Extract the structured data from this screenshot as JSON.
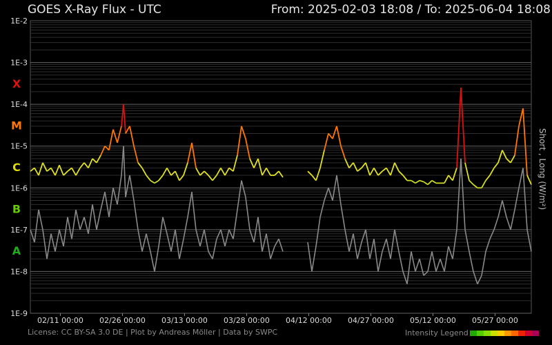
{
  "header": {
    "title": "GOES X-Ray Flux - UTC",
    "range": "From: 2025-02-03 18:08  /  To: 2025-06-04 18:08"
  },
  "side_label": "Short , Long (W/m²)",
  "footer": {
    "license": "License: CC BY-SA 3.0 DE | Plot by Andreas Möller | Data by SWPC",
    "legend_label": "Intensity Legend",
    "legend_colors": [
      "#22aa00",
      "#55cc00",
      "#88dd00",
      "#ccdd00",
      "#ffcc00",
      "#ff9900",
      "#ff6600",
      "#ee2200",
      "#cc0033",
      "#aa0055"
    ]
  },
  "chart_data": {
    "type": "line",
    "title": "GOES X-Ray Flux - UTC",
    "ylabel": "Short , Long (W/m²)",
    "y_scale": "log",
    "ylim": [
      1e-09,
      0.01
    ],
    "y_ticks": [
      "1E-9",
      "1E-8",
      "1E-7",
      "1E-6",
      "1E-5",
      "1E-4",
      "1E-3",
      "1E-2"
    ],
    "flare_classes": [
      {
        "label": "A",
        "color": "#22aa22",
        "value": 1e-07
      },
      {
        "label": "B",
        "color": "#66cc00",
        "value": 1e-06
      },
      {
        "label": "C",
        "color": "#dddd00",
        "value": 1e-05
      },
      {
        "label": "M",
        "color": "#ff7700",
        "value": 0.0001
      },
      {
        "label": "X",
        "color": "#dd1111",
        "value": 0.001
      }
    ],
    "x_ticks": [
      "02/11 00:00",
      "02/26 00:00",
      "03/13 00:00",
      "03/28 00:00",
      "04/12 00:00",
      "04/27 00:00",
      "05/12 00:00",
      "05/27 00:00"
    ],
    "x_start_day": 0,
    "x_tick_days": [
      7.24,
      22.24,
      37.24,
      52.24,
      67.24,
      82.24,
      97.24,
      112.24
    ],
    "x_end_day": 121,
    "grid": true,
    "series": [
      {
        "name": "Long",
        "points": [
          [
            0,
            2.5e-06
          ],
          [
            1,
            3e-06
          ],
          [
            2,
            2e-06
          ],
          [
            3,
            4e-06
          ],
          [
            4,
            2.5e-06
          ],
          [
            5,
            3e-06
          ],
          [
            6,
            2e-06
          ],
          [
            7,
            3.5e-06
          ],
          [
            8,
            2e-06
          ],
          [
            9,
            2.5e-06
          ],
          [
            10,
            3e-06
          ],
          [
            11,
            2e-06
          ],
          [
            12,
            3e-06
          ],
          [
            13,
            4e-06
          ],
          [
            14,
            3e-06
          ],
          [
            15,
            5e-06
          ],
          [
            16,
            4e-06
          ],
          [
            17,
            6e-06
          ],
          [
            18,
            1e-05
          ],
          [
            19,
            8e-06
          ],
          [
            20,
            2.5e-05
          ],
          [
            21,
            1.2e-05
          ],
          [
            22,
            3e-05
          ],
          [
            22.5,
            0.0001
          ],
          [
            23,
            2e-05
          ],
          [
            24,
            3e-05
          ],
          [
            25,
            1e-05
          ],
          [
            26,
            4e-06
          ],
          [
            27,
            3e-06
          ],
          [
            28,
            2e-06
          ],
          [
            29,
            1.5e-06
          ],
          [
            30,
            1.3e-06
          ],
          [
            31,
            1.5e-06
          ],
          [
            32,
            2e-06
          ],
          [
            33,
            3e-06
          ],
          [
            34,
            2e-06
          ],
          [
            35,
            2.5e-06
          ],
          [
            36,
            1.5e-06
          ],
          [
            37,
            2e-06
          ],
          [
            38,
            4e-06
          ],
          [
            39,
            1.2e-05
          ],
          [
            40,
            3e-06
          ],
          [
            41,
            2e-06
          ],
          [
            42,
            2.5e-06
          ],
          [
            43,
            2e-06
          ],
          [
            44,
            1.5e-06
          ],
          [
            45,
            2e-06
          ],
          [
            46,
            3e-06
          ],
          [
            47,
            2e-06
          ],
          [
            48,
            3e-06
          ],
          [
            49,
            2.5e-06
          ],
          [
            50,
            6e-06
          ],
          [
            51,
            3e-05
          ],
          [
            52,
            1.5e-05
          ],
          [
            53,
            5e-06
          ],
          [
            54,
            3e-06
          ],
          [
            55,
            5e-06
          ],
          [
            56,
            2e-06
          ],
          [
            57,
            3e-06
          ],
          [
            58,
            2e-06
          ],
          [
            59,
            2e-06
          ],
          [
            60,
            2.5e-06
          ],
          [
            61,
            1.8e-06
          ],
          [
            62,
            null
          ],
          [
            67,
            2.5e-06
          ],
          [
            68,
            2e-06
          ],
          [
            69,
            1.5e-06
          ],
          [
            70,
            3e-06
          ],
          [
            71,
            8e-06
          ],
          [
            72,
            2e-05
          ],
          [
            73,
            1.5e-05
          ],
          [
            74,
            3e-05
          ],
          [
            75,
            1e-05
          ],
          [
            76,
            5e-06
          ],
          [
            77,
            3e-06
          ],
          [
            78,
            4e-06
          ],
          [
            79,
            2.5e-06
          ],
          [
            80,
            3e-06
          ],
          [
            81,
            4e-06
          ],
          [
            82,
            2e-06
          ],
          [
            83,
            3e-06
          ],
          [
            84,
            2e-06
          ],
          [
            85,
            2.5e-06
          ],
          [
            86,
            3e-06
          ],
          [
            87,
            2e-06
          ],
          [
            88,
            4e-06
          ],
          [
            89,
            2.5e-06
          ],
          [
            90,
            2e-06
          ],
          [
            91,
            1.5e-06
          ],
          [
            92,
            1.5e-06
          ],
          [
            93,
            1.3e-06
          ],
          [
            94,
            1.5e-06
          ],
          [
            95,
            1.4e-06
          ],
          [
            96,
            1.2e-06
          ],
          [
            97,
            1.5e-06
          ],
          [
            98,
            1.3e-06
          ],
          [
            99,
            1.3e-06
          ],
          [
            100,
            1.3e-06
          ],
          [
            101,
            2e-06
          ],
          [
            102,
            1.5e-06
          ],
          [
            103,
            3e-06
          ],
          [
            104,
            0.00025
          ],
          [
            105,
            4e-06
          ],
          [
            106,
            1.5e-06
          ],
          [
            107,
            1.2e-06
          ],
          [
            108,
            1e-06
          ],
          [
            109,
            1e-06
          ],
          [
            110,
            1.5e-06
          ],
          [
            111,
            2e-06
          ],
          [
            112,
            3e-06
          ],
          [
            113,
            4e-06
          ],
          [
            114,
            8e-06
          ],
          [
            115,
            5e-06
          ],
          [
            116,
            4e-06
          ],
          [
            117,
            6e-06
          ],
          [
            118,
            3e-05
          ],
          [
            119,
            8e-05
          ],
          [
            120,
            2e-06
          ],
          [
            121,
            1.2e-06
          ]
        ]
      },
      {
        "name": "Short",
        "points": [
          [
            0,
            1e-07
          ],
          [
            1,
            5e-08
          ],
          [
            2,
            3e-07
          ],
          [
            3,
            1e-07
          ],
          [
            4,
            2e-08
          ],
          [
            5,
            8e-08
          ],
          [
            6,
            3e-08
          ],
          [
            7,
            1e-07
          ],
          [
            8,
            4e-08
          ],
          [
            9,
            2e-07
          ],
          [
            10,
            6e-08
          ],
          [
            11,
            3e-07
          ],
          [
            12,
            1e-07
          ],
          [
            13,
            2e-07
          ],
          [
            14,
            8e-08
          ],
          [
            15,
            4e-07
          ],
          [
            16,
            1e-07
          ],
          [
            17,
            3e-07
          ],
          [
            18,
            8e-07
          ],
          [
            19,
            2e-07
          ],
          [
            20,
            1e-06
          ],
          [
            21,
            4e-07
          ],
          [
            22,
            2e-06
          ],
          [
            22.5,
            1e-05
          ],
          [
            23,
            6e-07
          ],
          [
            24,
            2e-06
          ],
          [
            25,
            5e-07
          ],
          [
            26,
            1e-07
          ],
          [
            27,
            3e-08
          ],
          [
            28,
            8e-08
          ],
          [
            29,
            3e-08
          ],
          [
            30,
            1e-08
          ],
          [
            31,
            4e-08
          ],
          [
            32,
            2e-07
          ],
          [
            33,
            8e-08
          ],
          [
            34,
            3e-08
          ],
          [
            35,
            1e-07
          ],
          [
            36,
            2e-08
          ],
          [
            37,
            6e-08
          ],
          [
            38,
            2e-07
          ],
          [
            39,
            8e-07
          ],
          [
            40,
            1e-07
          ],
          [
            41,
            4e-08
          ],
          [
            42,
            1e-07
          ],
          [
            43,
            3e-08
          ],
          [
            44,
            2e-08
          ],
          [
            45,
            6e-08
          ],
          [
            46,
            1e-07
          ],
          [
            47,
            4e-08
          ],
          [
            48,
            1e-07
          ],
          [
            49,
            6e-08
          ],
          [
            50,
            3e-07
          ],
          [
            51,
            1.5e-06
          ],
          [
            52,
            6e-07
          ],
          [
            53,
            1e-07
          ],
          [
            54,
            5e-08
          ],
          [
            55,
            2e-07
          ],
          [
            56,
            3e-08
          ],
          [
            57,
            8e-08
          ],
          [
            58,
            2e-08
          ],
          [
            59,
            4e-08
          ],
          [
            60,
            6e-08
          ],
          [
            61,
            3e-08
          ],
          [
            62,
            null
          ],
          [
            67,
            5e-08
          ],
          [
            68,
            1e-08
          ],
          [
            69,
            4e-08
          ],
          [
            70,
            2e-07
          ],
          [
            71,
            5e-07
          ],
          [
            72,
            1e-06
          ],
          [
            73,
            5e-07
          ],
          [
            74,
            2e-06
          ],
          [
            75,
            4e-07
          ],
          [
            76,
            1e-07
          ],
          [
            77,
            3e-08
          ],
          [
            78,
            8e-08
          ],
          [
            79,
            2e-08
          ],
          [
            80,
            5e-08
          ],
          [
            81,
            1e-07
          ],
          [
            82,
            2e-08
          ],
          [
            83,
            6e-08
          ],
          [
            84,
            1e-08
          ],
          [
            85,
            3e-08
          ],
          [
            86,
            6e-08
          ],
          [
            87,
            2e-08
          ],
          [
            88,
            1e-07
          ],
          [
            89,
            3e-08
          ],
          [
            90,
            1e-08
          ],
          [
            91,
            5e-09
          ],
          [
            92,
            3e-08
          ],
          [
            93,
            1e-08
          ],
          [
            94,
            2e-08
          ],
          [
            95,
            8e-09
          ],
          [
            96,
            1e-08
          ],
          [
            97,
            3e-08
          ],
          [
            98,
            1e-08
          ],
          [
            99,
            2e-08
          ],
          [
            100,
            1e-08
          ],
          [
            101,
            4e-08
          ],
          [
            102,
            2e-08
          ],
          [
            103,
            1e-07
          ],
          [
            104,
            5e-06
          ],
          [
            105,
            1e-07
          ],
          [
            106,
            3e-08
          ],
          [
            107,
            1e-08
          ],
          [
            108,
            5e-09
          ],
          [
            109,
            8e-09
          ],
          [
            110,
            3e-08
          ],
          [
            111,
            6e-08
          ],
          [
            112,
            1e-07
          ],
          [
            113,
            2e-07
          ],
          [
            114,
            5e-07
          ],
          [
            115,
            2e-07
          ],
          [
            116,
            1e-07
          ],
          [
            117,
            3e-07
          ],
          [
            118,
            1e-06
          ],
          [
            119,
            3e-06
          ],
          [
            120,
            1e-07
          ],
          [
            121,
            3e-08
          ]
        ]
      }
    ]
  }
}
